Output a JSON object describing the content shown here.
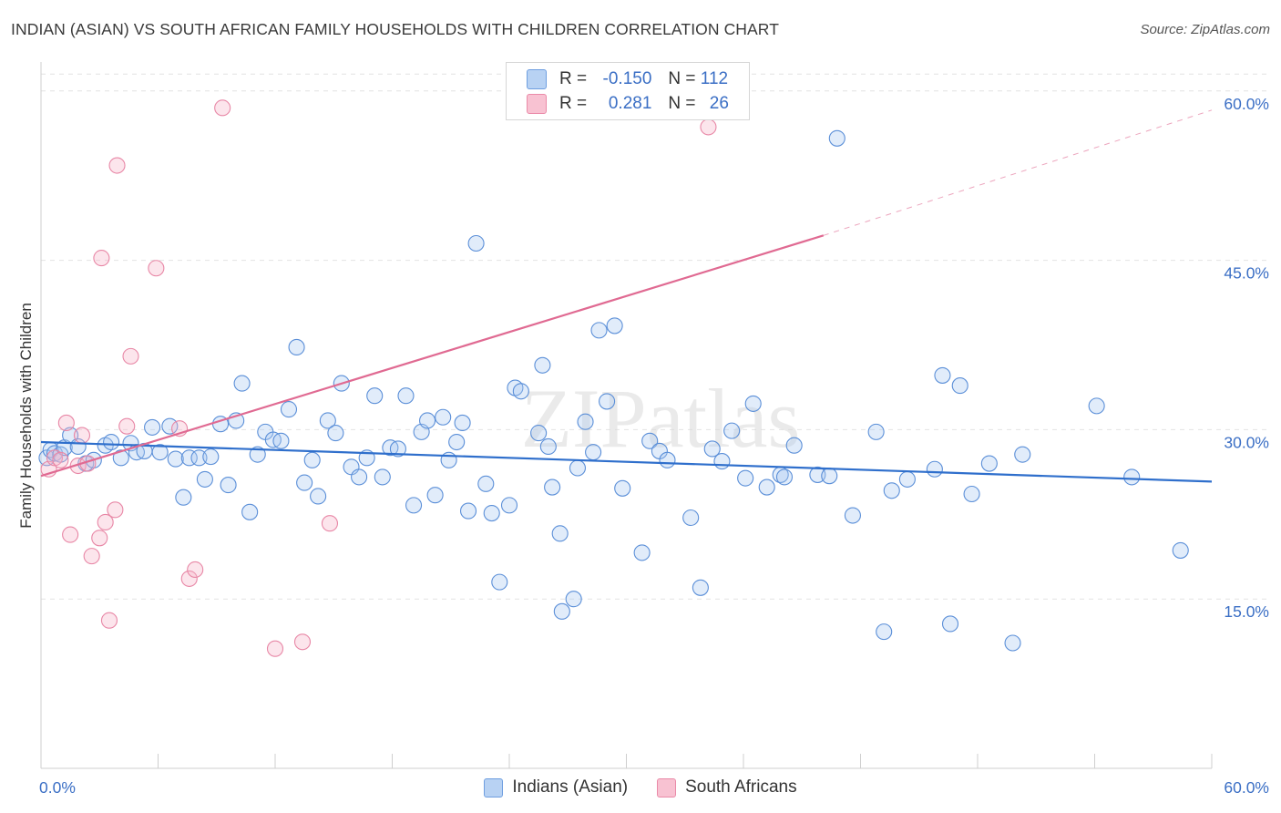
{
  "title": "INDIAN (ASIAN) VS SOUTH AFRICAN FAMILY HOUSEHOLDS WITH CHILDREN CORRELATION CHART",
  "source": "Source: ZipAtlas.com",
  "watermark": "ZIPatlas",
  "legend": {
    "r_label": "R =",
    "n_label": "N =",
    "rows": [
      {
        "r": "-0.150",
        "n": "112",
        "fill": "#b8d2f3",
        "stroke": "#6e9ee0"
      },
      {
        "r": "0.281",
        "n": "26",
        "fill": "#f8c2d2",
        "stroke": "#ea8aa8"
      }
    ]
  },
  "chart_data": {
    "type": "scatter",
    "title": "INDIAN (ASIAN) VS SOUTH AFRICAN FAMILY HOUSEHOLDS WITH CHILDREN CORRELATION CHART",
    "xlabel": "",
    "ylabel": "Family Households with Children",
    "xlim": [
      0,
      60
    ],
    "ylim": [
      0,
      62
    ],
    "x_tick_labels": [
      "0.0%",
      "60.0%"
    ],
    "y_ticks": [
      15,
      30,
      45,
      60
    ],
    "y_tick_labels": [
      "15.0%",
      "30.0%",
      "45.0%",
      "60.0%"
    ],
    "grid": true,
    "series": [
      {
        "name": "Indians (Asian)",
        "color": "#5b8fd8",
        "fill": "rgba(170,200,240,0.35)",
        "trend": {
          "x0": 0,
          "y0": 28.9,
          "x1": 60,
          "y1": 25.4,
          "color": "#2f6fcc"
        },
        "points": [
          [
            0.3,
            27.5
          ],
          [
            0.5,
            28.2
          ],
          [
            0.7,
            27.9
          ],
          [
            1.0,
            27.8
          ],
          [
            1.2,
            28.4
          ],
          [
            1.5,
            29.5
          ],
          [
            1.9,
            28.5
          ],
          [
            2.3,
            27.0
          ],
          [
            2.7,
            27.3
          ],
          [
            3.3,
            28.6
          ],
          [
            3.6,
            28.9
          ],
          [
            4.1,
            27.5
          ],
          [
            4.6,
            28.8
          ],
          [
            4.9,
            28.0
          ],
          [
            5.3,
            28.1
          ],
          [
            5.7,
            30.2
          ],
          [
            6.1,
            28.0
          ],
          [
            6.6,
            30.3
          ],
          [
            6.9,
            27.4
          ],
          [
            7.3,
            24.0
          ],
          [
            7.6,
            27.5
          ],
          [
            8.1,
            27.5
          ],
          [
            8.4,
            25.6
          ],
          [
            8.7,
            27.6
          ],
          [
            9.2,
            30.5
          ],
          [
            9.6,
            25.1
          ],
          [
            10.0,
            30.8
          ],
          [
            10.3,
            34.1
          ],
          [
            10.7,
            22.7
          ],
          [
            11.1,
            27.8
          ],
          [
            11.5,
            29.8
          ],
          [
            11.9,
            29.1
          ],
          [
            12.3,
            29.0
          ],
          [
            12.7,
            31.8
          ],
          [
            13.1,
            37.3
          ],
          [
            13.5,
            25.3
          ],
          [
            13.9,
            27.3
          ],
          [
            14.2,
            24.1
          ],
          [
            14.7,
            30.8
          ],
          [
            15.1,
            29.7
          ],
          [
            15.4,
            34.1
          ],
          [
            15.9,
            26.7
          ],
          [
            16.3,
            25.8
          ],
          [
            16.7,
            27.5
          ],
          [
            17.1,
            33.0
          ],
          [
            17.5,
            25.8
          ],
          [
            17.9,
            28.4
          ],
          [
            18.3,
            28.3
          ],
          [
            18.7,
            33.0
          ],
          [
            19.1,
            23.3
          ],
          [
            19.5,
            29.8
          ],
          [
            19.8,
            30.8
          ],
          [
            20.2,
            24.2
          ],
          [
            20.6,
            31.1
          ],
          [
            20.9,
            27.3
          ],
          [
            21.3,
            28.9
          ],
          [
            21.6,
            30.6
          ],
          [
            21.9,
            22.8
          ],
          [
            22.3,
            46.5
          ],
          [
            22.8,
            25.2
          ],
          [
            23.1,
            22.6
          ],
          [
            23.5,
            16.5
          ],
          [
            24.0,
            23.3
          ],
          [
            24.3,
            33.7
          ],
          [
            24.6,
            33.4
          ],
          [
            25.5,
            29.7
          ],
          [
            25.7,
            35.7
          ],
          [
            26.0,
            28.5
          ],
          [
            26.2,
            24.9
          ],
          [
            26.6,
            20.8
          ],
          [
            26.7,
            13.9
          ],
          [
            27.3,
            15.0
          ],
          [
            27.5,
            26.6
          ],
          [
            27.9,
            30.7
          ],
          [
            28.3,
            28.0
          ],
          [
            28.6,
            38.8
          ],
          [
            29.0,
            32.5
          ],
          [
            29.4,
            39.2
          ],
          [
            29.8,
            24.8
          ],
          [
            30.8,
            19.1
          ],
          [
            31.2,
            29.0
          ],
          [
            31.7,
            28.1
          ],
          [
            32.1,
            27.3
          ],
          [
            33.3,
            22.2
          ],
          [
            33.8,
            16.0
          ],
          [
            34.4,
            28.3
          ],
          [
            34.9,
            27.2
          ],
          [
            35.4,
            29.9
          ],
          [
            36.1,
            25.7
          ],
          [
            36.5,
            32.3
          ],
          [
            37.2,
            24.9
          ],
          [
            37.9,
            26.0
          ],
          [
            38.1,
            25.8
          ],
          [
            38.6,
            28.6
          ],
          [
            39.8,
            26.0
          ],
          [
            40.4,
            25.9
          ],
          [
            40.8,
            55.8
          ],
          [
            41.6,
            22.4
          ],
          [
            42.8,
            29.8
          ],
          [
            43.2,
            12.1
          ],
          [
            43.6,
            24.6
          ],
          [
            44.4,
            25.6
          ],
          [
            45.8,
            26.5
          ],
          [
            46.2,
            34.8
          ],
          [
            46.6,
            12.8
          ],
          [
            47.1,
            33.9
          ],
          [
            47.7,
            24.3
          ],
          [
            48.6,
            27.0
          ],
          [
            49.8,
            11.1
          ],
          [
            50.3,
            27.8
          ],
          [
            54.1,
            32.1
          ],
          [
            55.9,
            25.8
          ],
          [
            58.4,
            19.3
          ]
        ]
      },
      {
        "name": "South Africans",
        "color": "#e887a6",
        "fill": "rgba(245,180,200,0.35)",
        "trend": {
          "x0": 0,
          "y0": 25.9,
          "x1": 40.1,
          "y1": 47.2,
          "x_end": 60,
          "y_end": 58.3,
          "color": "#e06a92"
        },
        "points": [
          [
            0.4,
            26.5
          ],
          [
            0.7,
            27.5
          ],
          [
            1.0,
            27.3
          ],
          [
            1.3,
            30.6
          ],
          [
            1.5,
            20.7
          ],
          [
            1.9,
            26.8
          ],
          [
            2.1,
            29.5
          ],
          [
            2.4,
            27.0
          ],
          [
            2.6,
            18.8
          ],
          [
            3.0,
            20.4
          ],
          [
            3.3,
            21.8
          ],
          [
            3.1,
            45.2
          ],
          [
            3.5,
            13.1
          ],
          [
            3.8,
            22.9
          ],
          [
            3.9,
            53.4
          ],
          [
            4.4,
            30.3
          ],
          [
            4.6,
            36.5
          ],
          [
            5.9,
            44.3
          ],
          [
            7.1,
            30.1
          ],
          [
            7.6,
            16.8
          ],
          [
            7.9,
            17.6
          ],
          [
            9.3,
            58.5
          ],
          [
            12.0,
            10.6
          ],
          [
            13.4,
            11.2
          ],
          [
            14.8,
            21.7
          ],
          [
            34.2,
            56.8
          ]
        ]
      }
    ]
  },
  "bottom_legend": [
    {
      "label": "Indians (Asian)",
      "fill": "#b8d2f3",
      "stroke": "#6e9ee0"
    },
    {
      "label": "South Africans",
      "fill": "#f8c2d2",
      "stroke": "#ea8aa8"
    }
  ]
}
